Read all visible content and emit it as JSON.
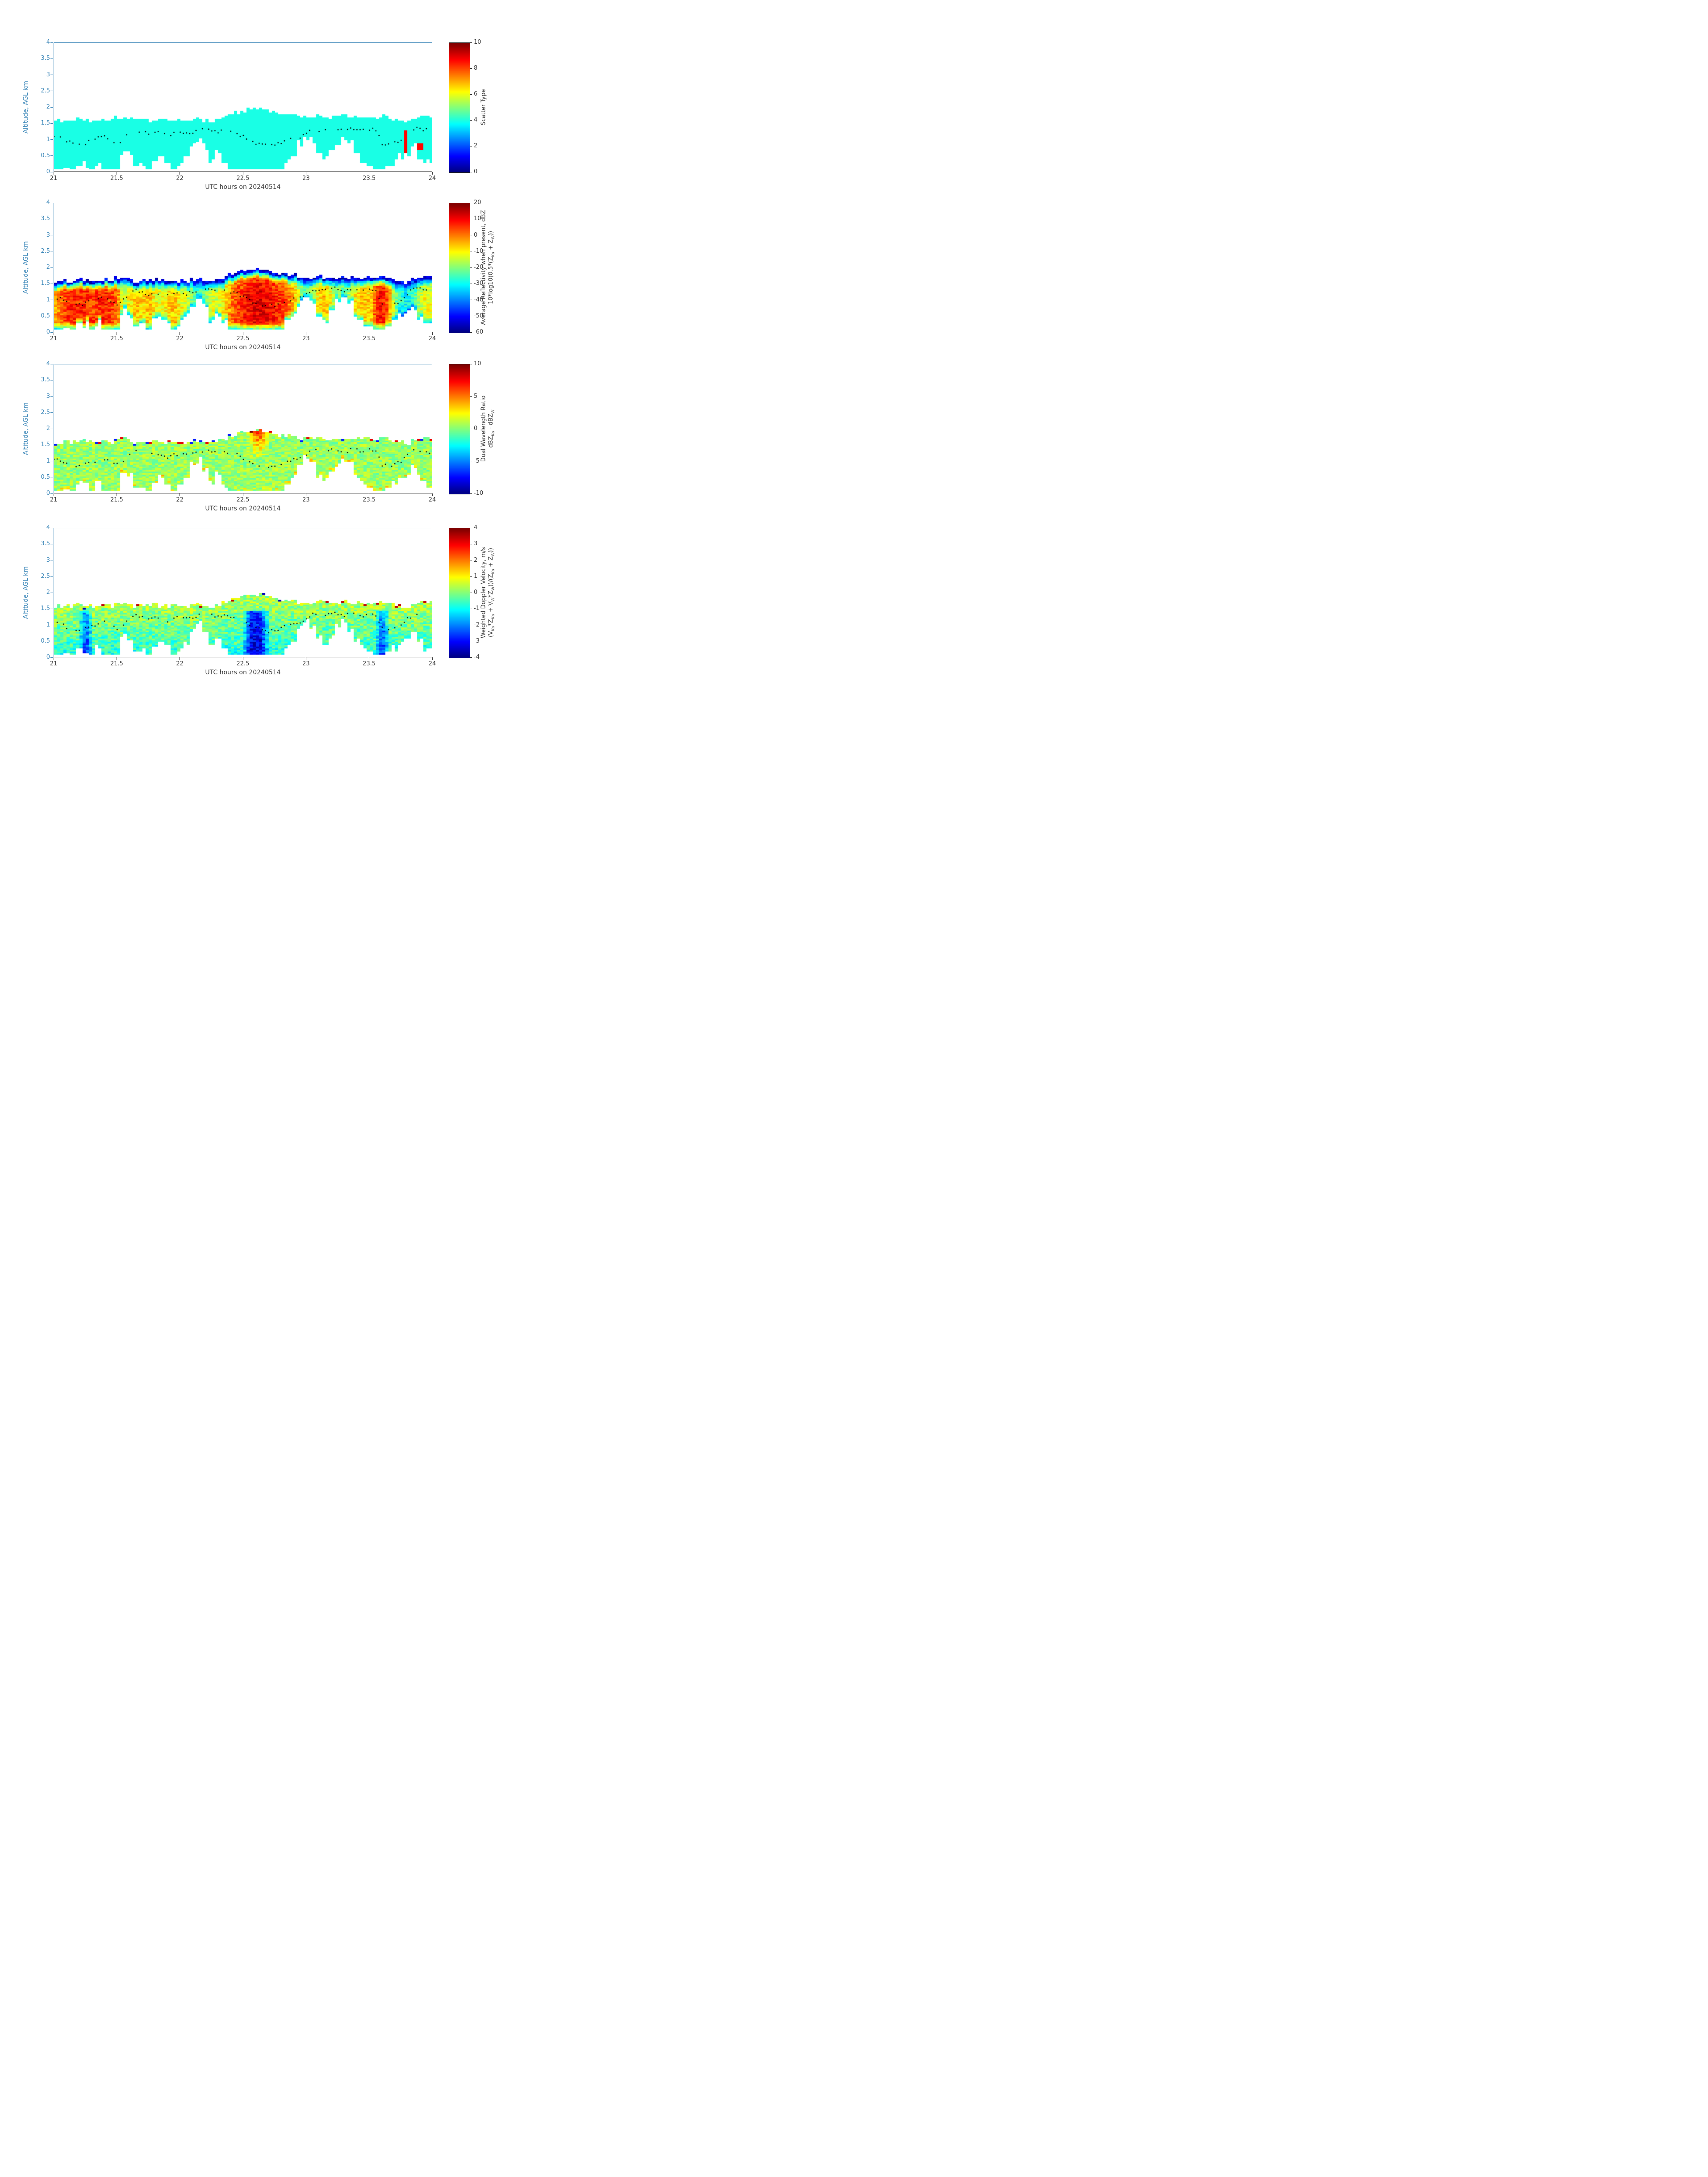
{
  "chart_data": {
    "type": "heatmap",
    "n_panels": 4,
    "x_label": "UTC hours on 20240514",
    "y_label": "Altitude, AGL km",
    "x_range": [
      21,
      24
    ],
    "y_range": [
      0,
      4
    ],
    "x_ticks": [
      21,
      21.5,
      22,
      22.5,
      23,
      23.5,
      24
    ],
    "y_ticks": [
      0,
      0.5,
      1,
      1.5,
      2,
      2.5,
      3,
      3.5,
      4
    ],
    "time_start": 21,
    "time_step": 0.05,
    "cloud_top_km": [
      1.55,
      1.6,
      1.62,
      1.62,
      1.65,
      1.63,
      1.6,
      1.62,
      1.65,
      1.62,
      1.68,
      1.72,
      1.65,
      1.6,
      1.62,
      1.6,
      1.63,
      1.62,
      1.6,
      1.62,
      1.6,
      1.62,
      1.65,
      1.63,
      1.6,
      1.62,
      1.65,
      1.7,
      1.78,
      1.85,
      1.9,
      1.95,
      1.97,
      1.95,
      1.9,
      1.85,
      1.82,
      1.8,
      1.78,
      1.72,
      1.68,
      1.72,
      1.75,
      1.72,
      1.7,
      1.72,
      1.75,
      1.72,
      1.7,
      1.72,
      1.7,
      1.72,
      1.75,
      1.7,
      1.65,
      1.6,
      1.55,
      1.65,
      1.72,
      1.75,
      1.75
    ],
    "cloud_base_km": [
      0.12,
      0.12,
      0.15,
      0.12,
      0.3,
      0.25,
      0.12,
      0.3,
      0.12,
      0.12,
      0.12,
      0.65,
      0.55,
      0.2,
      0.3,
      0.12,
      0.35,
      0.5,
      0.3,
      0.12,
      0.3,
      0.5,
      0.9,
      1.05,
      0.8,
      0.4,
      0.6,
      0.3,
      0.12,
      0.12,
      0.12,
      0.12,
      0.12,
      0.12,
      0.12,
      0.12,
      0.12,
      0.3,
      0.5,
      0.9,
      1.1,
      1.0,
      0.6,
      0.4,
      0.7,
      0.95,
      1.1,
      0.9,
      0.5,
      0.3,
      0.2,
      0.12,
      0.12,
      0.2,
      0.3,
      0.5,
      0.6,
      0.8,
      0.5,
      0.3,
      0.3
    ],
    "melting_layer_dots_km": [
      1.1,
      1.05,
      0.95,
      0.9,
      0.85,
      0.9,
      1.0,
      1.05,
      1.1,
      0.95,
      0.9,
      1.0,
      1.25,
      1.3,
      1.25,
      1.2,
      1.25,
      1.2,
      1.15,
      1.2,
      1.25,
      1.2,
      1.25,
      1.3,
      1.35,
      1.3,
      1.25,
      1.3,
      1.25,
      1.2,
      1.1,
      1.0,
      0.9,
      0.85,
      0.8,
      0.85,
      0.9,
      1.0,
      1.05,
      1.1,
      1.2,
      1.35,
      1.3,
      1.35,
      1.4,
      1.35,
      1.3,
      1.35,
      1.35,
      1.3,
      1.35,
      1.3,
      0.9,
      0.85,
      0.9,
      1.0,
      1.2,
      1.35,
      1.35,
      1.3,
      1.3
    ],
    "panels": [
      {
        "name": "scatter-type",
        "colormap": "jet",
        "field": "scatter",
        "value_range": [
          0,
          10
        ],
        "background_value": 4,
        "anomalies": [
          {
            "time": 23.78,
            "y_min": 0.5,
            "y_max": 1.3,
            "value": 8.7
          },
          {
            "time": 23.9,
            "y_min": 0.7,
            "y_max": 0.9,
            "value": 8.7
          }
        ],
        "colorbar": {
          "ticks": [
            0,
            2,
            4,
            6,
            8,
            10
          ],
          "labels": [
            "Scatter Type"
          ]
        }
      },
      {
        "name": "average-reflectivity",
        "colormap": "jet",
        "field": "reflectivity",
        "value_range": [
          -60,
          20
        ],
        "column_peak_dbz": [
          -5,
          0,
          5,
          8,
          6,
          8,
          4,
          6,
          8,
          5,
          2,
          -15,
          -10,
          -5,
          -8,
          -5,
          -10,
          -12,
          -8,
          -5,
          -10,
          -15,
          -20,
          -25,
          -20,
          -12,
          -15,
          -8,
          0,
          5,
          8,
          10,
          12,
          12,
          10,
          8,
          6,
          2,
          -5,
          -15,
          -20,
          -15,
          -8,
          -5,
          -12,
          -18,
          -20,
          -15,
          -8,
          -5,
          -8,
          5,
          10,
          2,
          -20,
          -28,
          -30,
          -25,
          -15,
          -10,
          -12
        ],
        "colorbar": {
          "ticks": [
            -60,
            -50,
            -40,
            -30,
            -20,
            -10,
            0,
            10,
            20
          ],
          "labels": [
            "Average Reflectivity when present, dBZ",
            "10*log10(0.5*(Z_{Ka} + Z_{W}))"
          ]
        }
      },
      {
        "name": "dual-wavelength-ratio",
        "colormap": "jet",
        "field": "dwr",
        "value_range": [
          -10,
          10
        ],
        "background_value": 0.5,
        "plume": {
          "time": 22.62,
          "y_bottom": 0.95,
          "max_value": 9
        },
        "colorbar": {
          "ticks": [
            -10,
            -5,
            0,
            5,
            10
          ],
          "labels": [
            "Dual Wavelength Ratio",
            "dBZ_{Ka} - dBZ_{W}"
          ]
        }
      },
      {
        "name": "weighted-doppler-velocity",
        "colormap": "jet",
        "field": "velocity",
        "value_range": [
          -4,
          4
        ],
        "downdraft_times": [
          21.25,
          22.55,
          22.6,
          22.65,
          23.6
        ],
        "downdraft_value": -2.8,
        "colorbar": {
          "ticks": [
            -4,
            -3,
            -2,
            -1,
            0,
            1,
            2,
            3,
            4
          ],
          "labels": [
            "Weighted Doppler Velocity, m/s",
            "(V_{Ka}*Z_{Ka} + V_{W}*Z_{W}))/(Z_{Ka} + Z_{W}))"
          ]
        }
      }
    ],
    "colors": {
      "y_axis": "#3a86b8",
      "x_axis": "#3b3b3b",
      "dots": "#000000",
      "scatter_fill": "#2ee6d6"
    }
  }
}
